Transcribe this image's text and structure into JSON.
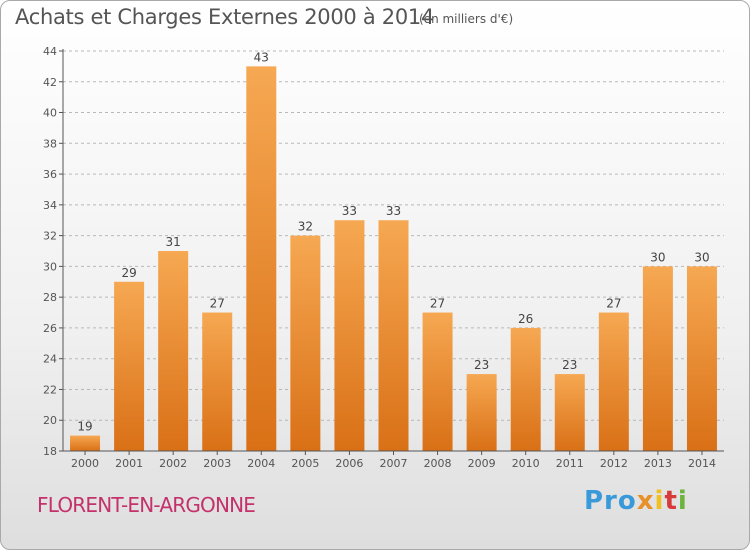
{
  "title": "Achats et Charges Externes 2000 à 2014",
  "subtitle": "(en milliers d'€)",
  "commune": "FLORENT-EN-ARGONNE",
  "logo": {
    "p1": "Pro",
    "p2": "x",
    "p3": "i",
    "p4": "t",
    "p5": "i"
  },
  "colors": {
    "bar_light": "#f6a852",
    "bar_dark": "#d97016",
    "axis": "#555555",
    "grid": "#b8b8b8",
    "commune": "#c4316b"
  },
  "chart_data": {
    "type": "bar",
    "categories": [
      "2000",
      "2001",
      "2002",
      "2003",
      "2004",
      "2005",
      "2006",
      "2007",
      "2008",
      "2009",
      "2010",
      "2011",
      "2012",
      "2013",
      "2014"
    ],
    "values": [
      19,
      29,
      31,
      27,
      43,
      32,
      33,
      33,
      27,
      23,
      26,
      23,
      27,
      30,
      30
    ],
    "ylim": [
      18,
      44
    ],
    "yticks": [
      18,
      20,
      22,
      24,
      26,
      28,
      30,
      32,
      34,
      36,
      38,
      40,
      42,
      44
    ],
    "grid": "horizontal dashed",
    "data_labels": true
  }
}
